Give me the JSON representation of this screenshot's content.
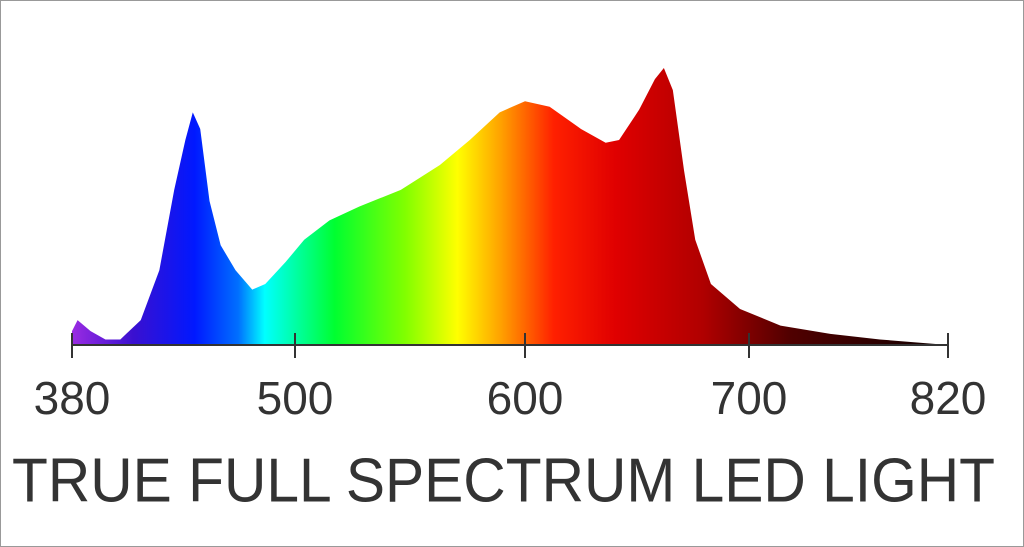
{
  "chart_data": {
    "type": "area",
    "title": "TRUE FULL SPECTRUM LED LIGHT",
    "x": [
      380,
      383,
      390,
      398,
      406,
      417,
      427,
      435,
      441,
      445,
      449,
      454,
      460,
      468,
      477,
      484,
      495,
      504,
      515,
      528,
      546,
      563,
      576,
      589,
      600,
      611,
      625,
      636,
      642,
      651,
      658,
      662,
      666,
      671,
      676,
      683,
      696,
      719,
      749,
      779,
      820
    ],
    "values": [
      5,
      9,
      5,
      2,
      2,
      9,
      27,
      56,
      74,
      84,
      78,
      52,
      36,
      27,
      20,
      22,
      30,
      38,
      45,
      50,
      56,
      65,
      74,
      84,
      88,
      86,
      78,
      73,
      74,
      85,
      96,
      100,
      92,
      63,
      38,
      22,
      13,
      7,
      4,
      2,
      0
    ],
    "xlim": [
      380,
      820
    ],
    "xticks": [
      380,
      500,
      600,
      700,
      820
    ],
    "ylim": [
      0,
      100
    ]
  }
}
